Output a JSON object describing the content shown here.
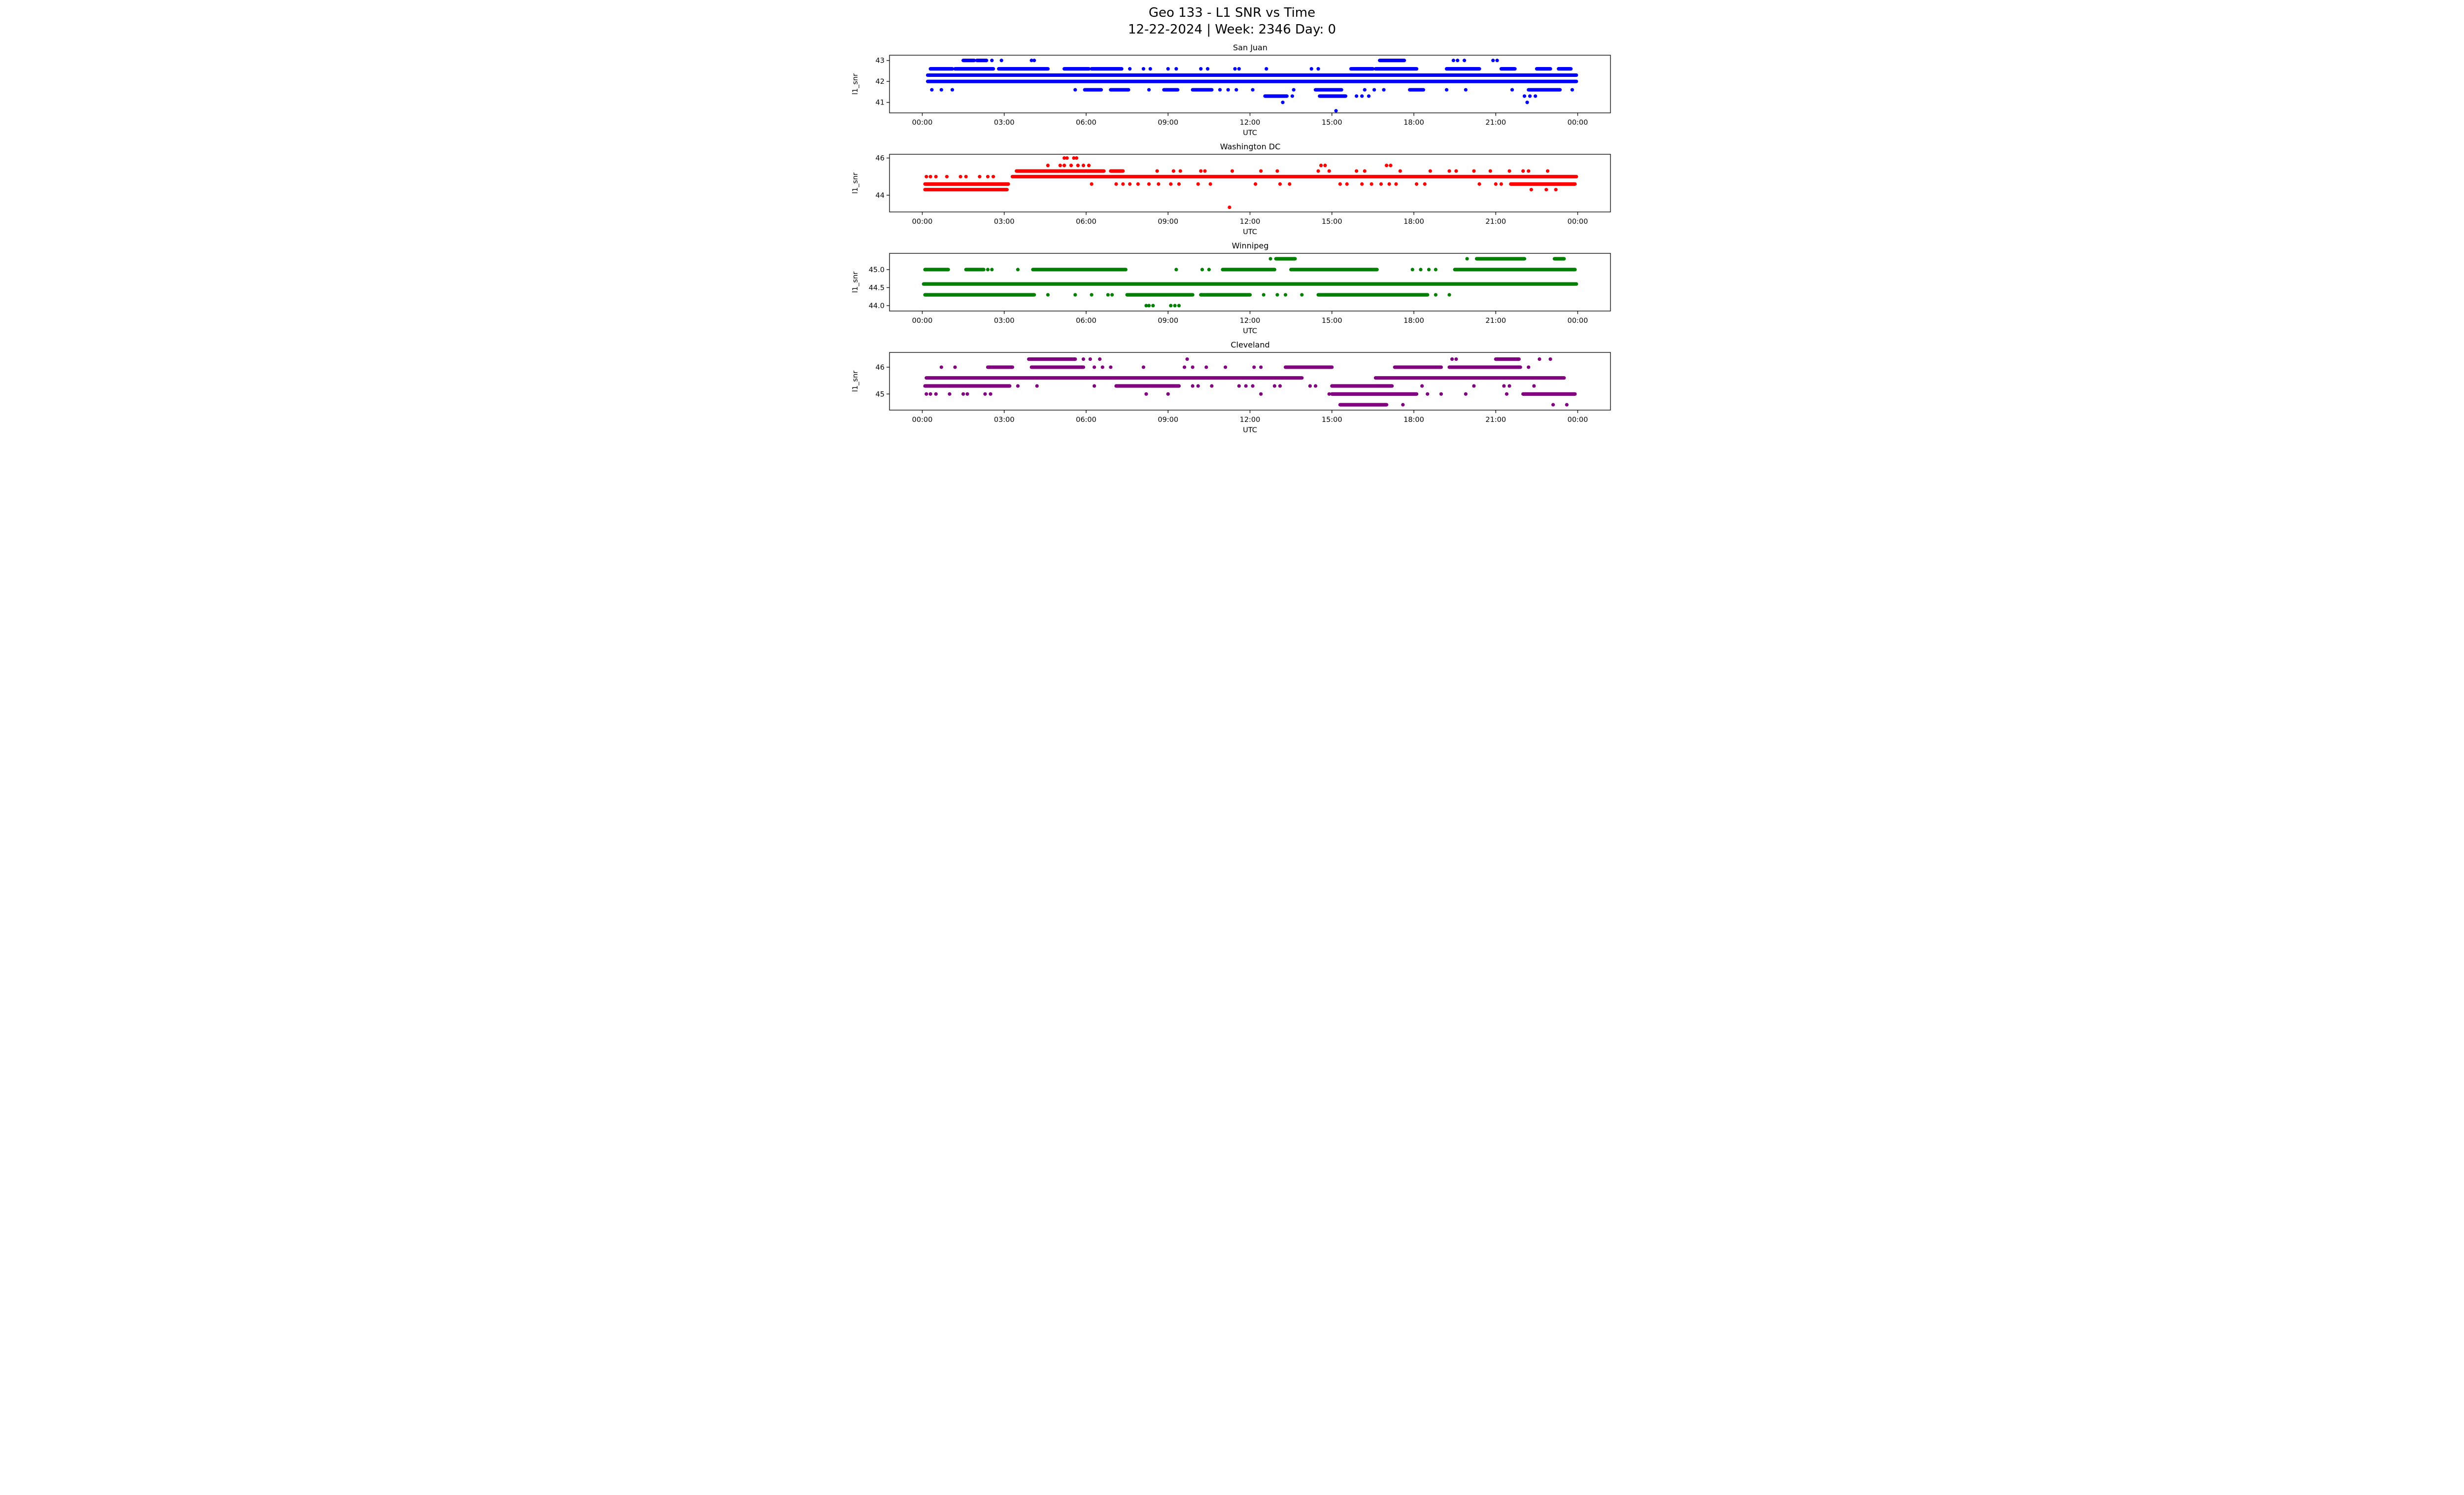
{
  "figure": {
    "title_line1": "Geo 133 - L1 SNR vs Time",
    "title_line2": "12-22-2024 | Week: 2346 Day: 0",
    "background": "#ffffff",
    "frame_color": "#000000"
  },
  "axis": {
    "xlabel": "UTC",
    "ylabel": "l1_snr",
    "xlim": [
      -1.2,
      25.2
    ],
    "xtick_hours": [
      0,
      3,
      6,
      9,
      12,
      15,
      18,
      21,
      24
    ],
    "xtick_labels": [
      "00:00",
      "03:00",
      "06:00",
      "09:00",
      "12:00",
      "15:00",
      "18:00",
      "21:00",
      "00:00"
    ]
  },
  "chart_data": [
    {
      "type": "scatter",
      "title": "San Juan",
      "color": "#0000ff",
      "ylabel": "l1_snr",
      "xlabel": "UTC",
      "ylim": [
        40.5,
        43.25
      ],
      "yticks": [
        {
          "v": 43,
          "label": "43"
        },
        {
          "v": 42,
          "label": "42"
        },
        {
          "v": 41,
          "label": "41"
        }
      ],
      "levels": [
        {
          "snr": 43.0,
          "segments": [
            [
              1.5,
              1.9
            ],
            [
              2.0,
              2.35
            ],
            [
              16.75,
              17.65
            ]
          ],
          "points": [
            2.55,
            2.9,
            4.0,
            4.1,
            19.45,
            19.6,
            19.85,
            20.9,
            21.05
          ]
        },
        {
          "snr": 42.6,
          "segments": [
            [
              0.3,
              1.1
            ],
            [
              1.2,
              2.6
            ],
            [
              2.8,
              4.6
            ],
            [
              5.2,
              6.1
            ],
            [
              6.2,
              7.3
            ],
            [
              15.7,
              16.5
            ],
            [
              16.6,
              18.1
            ],
            [
              19.2,
              20.4
            ],
            [
              21.2,
              21.7
            ],
            [
              22.5,
              23.0
            ],
            [
              23.3,
              23.75
            ]
          ],
          "points": [
            7.6,
            8.1,
            8.35,
            9.0,
            9.3,
            10.2,
            10.45,
            11.45,
            11.6,
            12.6,
            14.25,
            14.5
          ]
        },
        {
          "snr": 42.3,
          "segments": [
            [
              0.2,
              23.95
            ]
          ],
          "points": []
        },
        {
          "snr": 42.0,
          "segments": [
            [
              0.2,
              23.95
            ]
          ],
          "points": []
        },
        {
          "snr": 41.6,
          "segments": [
            [
              5.95,
              6.55
            ],
            [
              6.9,
              7.55
            ],
            [
              8.85,
              9.35
            ],
            [
              9.9,
              10.6
            ],
            [
              14.4,
              15.35
            ],
            [
              17.85,
              18.35
            ],
            [
              22.2,
              23.35
            ]
          ],
          "points": [
            0.35,
            0.7,
            1.1,
            5.6,
            8.3,
            10.9,
            11.2,
            11.5,
            12.1,
            13.6,
            16.2,
            16.55,
            16.9,
            19.2,
            19.9,
            21.6,
            23.8
          ]
        },
        {
          "snr": 41.3,
          "segments": [
            [
              12.55,
              13.35
            ],
            [
              14.55,
              15.5
            ]
          ],
          "points": [
            13.55,
            15.9,
            16.1,
            16.35,
            22.05,
            22.25,
            22.45
          ]
        },
        {
          "snr": 41.0,
          "segments": [],
          "points": [
            13.2,
            22.15
          ]
        },
        {
          "snr": 40.6,
          "segments": [],
          "points": [
            15.15
          ]
        }
      ]
    },
    {
      "type": "scatter",
      "title": "Washington DC",
      "color": "#ff0000",
      "ylabel": "l1_snr",
      "xlabel": "UTC",
      "ylim": [
        43.1,
        46.2
      ],
      "yticks": [
        {
          "v": 46,
          "label": "46"
        },
        {
          "v": 44,
          "label": "44"
        }
      ],
      "levels": [
        {
          "snr": 46.0,
          "segments": [],
          "points": [
            5.2,
            5.3,
            5.55,
            5.65
          ]
        },
        {
          "snr": 45.6,
          "segments": [],
          "points": [
            4.6,
            5.05,
            5.2,
            5.45,
            5.7,
            5.9,
            6.1,
            14.6,
            14.75,
            17.0,
            17.15
          ]
        },
        {
          "snr": 45.3,
          "segments": [
            [
              3.45,
              6.65
            ],
            [
              6.9,
              7.35
            ]
          ],
          "points": [
            8.6,
            9.2,
            9.45,
            10.2,
            10.35,
            11.35,
            12.4,
            13.0,
            14.5,
            14.9,
            15.9,
            16.2,
            17.5,
            18.6,
            19.3,
            19.55,
            20.2,
            20.8,
            21.5,
            22.0,
            22.2,
            22.9
          ]
        },
        {
          "snr": 45.0,
          "segments": [
            [
              3.3,
              23.95
            ]
          ],
          "points": [
            0.15,
            0.3,
            0.5,
            0.9,
            1.4,
            1.6,
            2.1,
            2.4,
            2.6
          ]
        },
        {
          "snr": 44.6,
          "segments": [
            [
              0.1,
              3.15
            ],
            [
              21.55,
              23.9
            ]
          ],
          "points": [
            6.2,
            7.1,
            7.35,
            7.6,
            7.9,
            8.3,
            8.65,
            9.1,
            9.4,
            10.1,
            10.55,
            12.2,
            13.1,
            13.45,
            15.3,
            15.55,
            16.1,
            16.45,
            16.8,
            17.1,
            17.35,
            18.1,
            18.4,
            20.4,
            21.0,
            21.2
          ]
        },
        {
          "snr": 44.3,
          "segments": [
            [
              0.1,
              3.1
            ]
          ],
          "points": [
            22.3,
            22.85,
            23.2
          ]
        },
        {
          "snr": 43.35,
          "segments": [],
          "points": [
            11.25
          ]
        }
      ]
    },
    {
      "type": "scatter",
      "title": "Winnipeg",
      "color": "#008000",
      "ylabel": "l1_snr",
      "xlabel": "UTC",
      "ylim": [
        43.85,
        45.45
      ],
      "yticks": [
        {
          "v": 45.0,
          "label": "45.0"
        },
        {
          "v": 44.5,
          "label": "44.5"
        },
        {
          "v": 44.0,
          "label": "44.0"
        }
      ],
      "levels": [
        {
          "snr": 45.3,
          "segments": [
            [
              12.95,
              13.65
            ],
            [
              20.3,
              22.05
            ],
            [
              23.15,
              23.5
            ]
          ],
          "points": [
            12.75,
            19.95
          ]
        },
        {
          "snr": 45.0,
          "segments": [
            [
              0.1,
              0.95
            ],
            [
              1.6,
              2.25
            ],
            [
              4.05,
              7.45
            ],
            [
              11.0,
              12.9
            ],
            [
              13.5,
              16.65
            ],
            [
              19.5,
              23.9
            ]
          ],
          "points": [
            2.4,
            2.55,
            3.5,
            9.3,
            10.25,
            10.5,
            17.95,
            18.25,
            18.55,
            18.8
          ]
        },
        {
          "snr": 44.6,
          "segments": [
            [
              0.05,
              23.95
            ]
          ],
          "points": []
        },
        {
          "snr": 44.3,
          "segments": [
            [
              0.1,
              4.1
            ],
            [
              7.5,
              9.9
            ],
            [
              10.2,
              12.0
            ],
            [
              14.5,
              18.5
            ]
          ],
          "points": [
            4.6,
            5.6,
            6.2,
            6.8,
            6.95,
            12.5,
            13.0,
            13.3,
            13.9,
            18.8,
            19.3
          ]
        },
        {
          "snr": 44.0,
          "segments": [],
          "points": [
            8.2,
            8.3,
            8.45,
            9.1,
            9.25,
            9.4
          ]
        }
      ]
    },
    {
      "type": "scatter",
      "title": "Cleveland",
      "color": "#800080",
      "ylabel": "l1_snr",
      "xlabel": "UTC",
      "ylim": [
        44.4,
        46.55
      ],
      "yticks": [
        {
          "v": 46,
          "label": "46"
        },
        {
          "v": 45,
          "label": "45"
        }
      ],
      "levels": [
        {
          "snr": 46.3,
          "segments": [
            [
              3.9,
              5.6
            ],
            [
              21.0,
              21.85
            ]
          ],
          "points": [
            5.9,
            6.15,
            6.5,
            9.7,
            19.4,
            19.55,
            22.6,
            23.0
          ]
        },
        {
          "snr": 46.0,
          "segments": [
            [
              2.4,
              3.3
            ],
            [
              4.0,
              5.9
            ],
            [
              13.3,
              15.0
            ],
            [
              17.3,
              19.0
            ],
            [
              19.3,
              21.9
            ]
          ],
          "points": [
            0.7,
            1.2,
            6.3,
            6.6,
            6.9,
            8.1,
            9.6,
            9.9,
            10.4,
            11.1,
            12.15,
            12.4,
            22.2
          ]
        },
        {
          "snr": 45.6,
          "segments": [
            [
              0.15,
              13.9
            ],
            [
              16.6,
              23.5
            ]
          ],
          "points": []
        },
        {
          "snr": 45.3,
          "segments": [
            [
              0.1,
              3.2
            ],
            [
              7.1,
              9.4
            ],
            [
              15.0,
              17.2
            ]
          ],
          "points": [
            3.5,
            4.2,
            6.3,
            9.9,
            10.1,
            10.6,
            11.6,
            11.85,
            12.1,
            12.9,
            13.1,
            14.2,
            14.4,
            18.3,
            20.2,
            21.3,
            21.5,
            22.4
          ]
        },
        {
          "snr": 45.0,
          "segments": [
            [
              15.0,
              18.1
            ],
            [
              22.0,
              23.9
            ]
          ],
          "points": [
            0.15,
            0.3,
            0.5,
            1.0,
            1.5,
            1.65,
            2.3,
            2.5,
            8.2,
            9.0,
            12.4,
            14.9,
            18.5,
            19.0,
            19.9,
            21.4
          ]
        },
        {
          "snr": 44.6,
          "segments": [
            [
              15.3,
              17.0
            ]
          ],
          "points": [
            17.6,
            23.1,
            23.6
          ]
        }
      ]
    }
  ]
}
